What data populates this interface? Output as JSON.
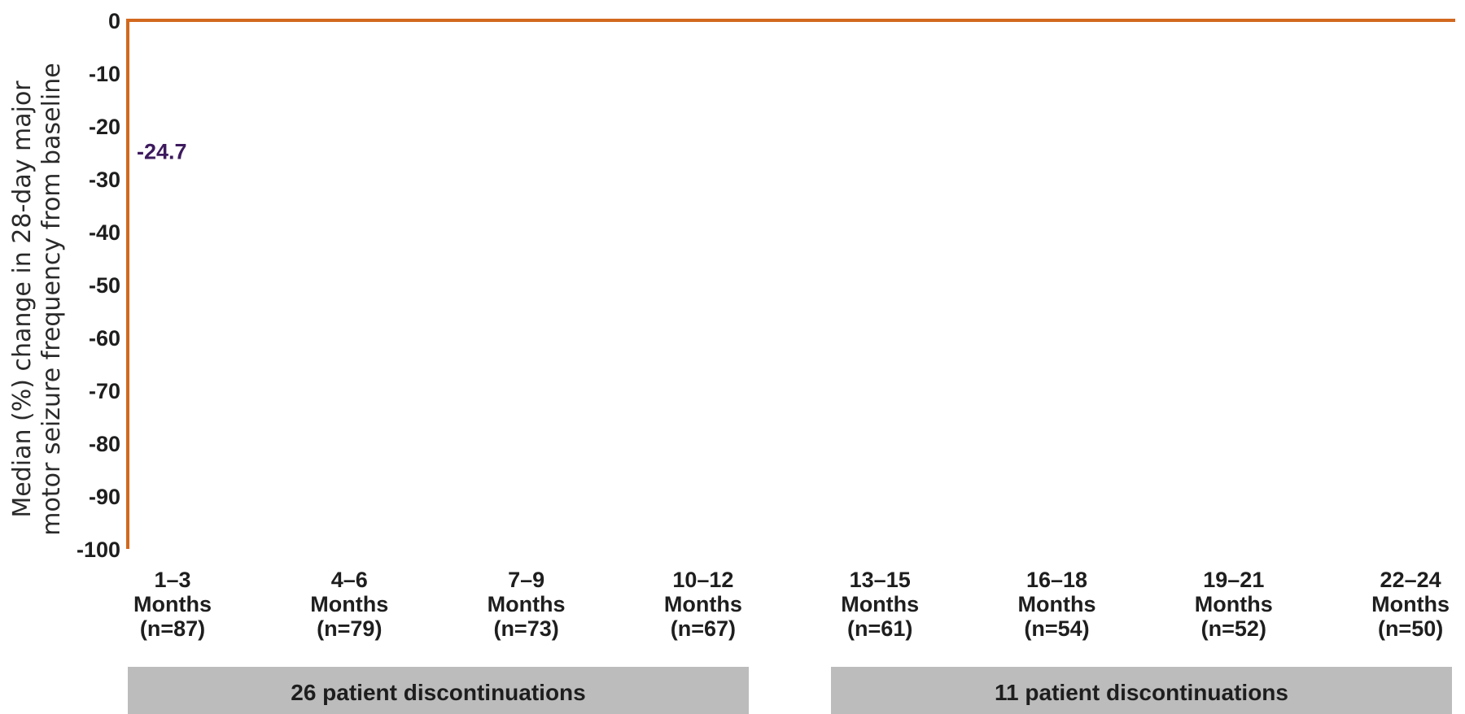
{
  "chart_data": {
    "type": "bar",
    "ylabel": [
      "Median (%) change in 28-day major",
      "motor seizure frequency from baseline"
    ],
    "ylim": [
      -100,
      0
    ],
    "yticks": [
      0,
      -10,
      -20,
      -30,
      -40,
      -50,
      -60,
      -70,
      -80,
      -90,
      -100
    ],
    "grid": false,
    "categories": [
      [
        "1–3",
        "Months",
        "(n=87)"
      ],
      [
        "4–6",
        "Months",
        "(n=79)"
      ],
      [
        "7–9",
        "Months",
        "(n=73)"
      ],
      [
        "10–12",
        "Months",
        "(n=67)"
      ],
      [
        "13–15",
        "Months",
        "(n=61)"
      ],
      [
        "16–18",
        "Months",
        "(n=54)"
      ],
      [
        "19–21",
        "Months",
        "(n=52)"
      ],
      [
        "22–24",
        "Months",
        "(n=50)"
      ]
    ],
    "data_labels": [
      {
        "category_index": 0,
        "value": -24.7,
        "text": "-24.7"
      }
    ],
    "groups": [
      {
        "label": "26 patient discontinuations",
        "from": 0,
        "to": 3
      },
      {
        "label": "11 patient discontinuations",
        "from": 4,
        "to": 7
      }
    ],
    "colors": {
      "axis": "#d2691e",
      "data_label": "#3d1a5e",
      "band": "#bcbcbc",
      "text": "#1e1e1e"
    }
  }
}
